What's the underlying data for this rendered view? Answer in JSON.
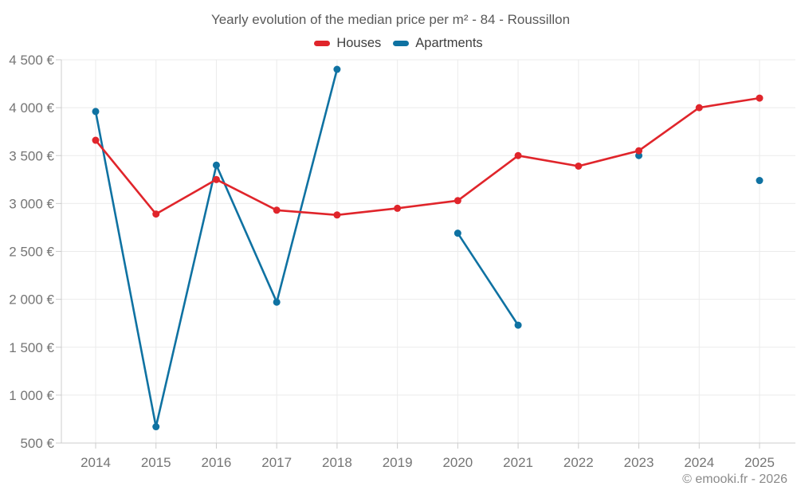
{
  "chart_data": {
    "type": "line",
    "title": "Yearly evolution of the median price per m² - 84 - Roussillon",
    "x": [
      "2014",
      "2015",
      "2016",
      "2017",
      "2018",
      "2019",
      "2020",
      "2021",
      "2022",
      "2023",
      "2024",
      "2025"
    ],
    "series": [
      {
        "name": "Houses",
        "color": "#e0252b",
        "values": [
          3660,
          2890,
          3250,
          2930,
          2880,
          2950,
          3030,
          3500,
          3390,
          3550,
          4000,
          4100
        ]
      },
      {
        "name": "Apartments",
        "color": "#0f72a2",
        "values": [
          3960,
          670,
          3400,
          1970,
          4400,
          null,
          2690,
          1730,
          null,
          3500,
          null,
          3240
        ]
      }
    ],
    "ylim": [
      500,
      4500
    ],
    "yticks": [
      {
        "value": 500,
        "label": "500 €"
      },
      {
        "value": 1000,
        "label": "1 000 €"
      },
      {
        "value": 1500,
        "label": "1 500 €"
      },
      {
        "value": 2000,
        "label": "2 000 €"
      },
      {
        "value": 2500,
        "label": "2 500 €"
      },
      {
        "value": 3000,
        "label": "3 000 €"
      },
      {
        "value": 3500,
        "label": "3 500 €"
      },
      {
        "value": 4000,
        "label": "4 000 €"
      },
      {
        "value": 4500,
        "label": "4 500 €"
      }
    ],
    "grid": true,
    "legend_position": "top",
    "styles": {
      "grid_color": "#ebebeb",
      "axis_color": "#cccccc",
      "tick_label_color": "#757575",
      "title_color": "#595959",
      "legend_text_color": "#3e3e3e",
      "copyright_color": "#8a8a8a"
    }
  },
  "footer": {
    "copyright": "© emooki.fr - 2026"
  }
}
